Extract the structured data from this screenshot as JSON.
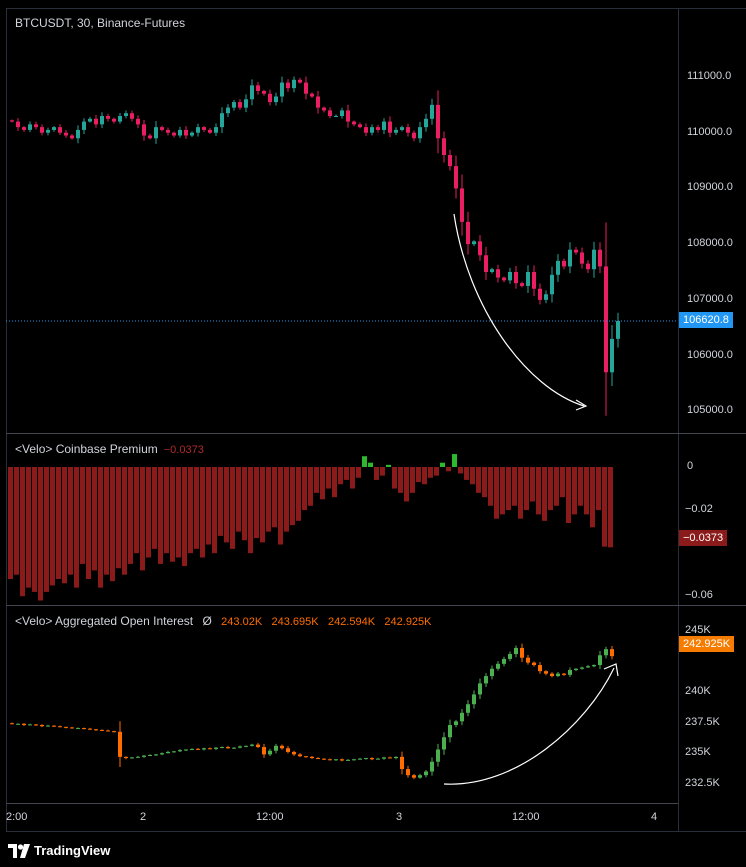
{
  "main_pane": {
    "title": "BTCUSDT, 30, Binance-Futures",
    "price_axis": [
      "111000.0",
      "110000.0",
      "109000.0",
      "108000.0",
      "107000.0",
      "106000.0",
      "105000.0"
    ],
    "last_price": "106620.8",
    "last_price_color": "#2196f3"
  },
  "premium_pane": {
    "title": "<Velo> Coinbase Premium",
    "value": "−0.0373",
    "value_color": "#8b1a1a",
    "axis": [
      "0",
      "−0.02",
      "−0.04",
      "−0.06"
    ],
    "tag": "−0.0373"
  },
  "oi_pane": {
    "title": "<Velo> Aggregated Open Interest",
    "symbol": "Ø",
    "values": [
      "243.02K",
      "243.695K",
      "242.594K",
      "242.925K"
    ],
    "axis": [
      "245K",
      "242.5K",
      "240K",
      "237.5K",
      "235K",
      "232.5K"
    ],
    "tag": "242.925K",
    "tag_color": "#f57c00"
  },
  "time_axis": [
    "2:00",
    "2",
    "12:00",
    "3",
    "12:00",
    "4"
  ],
  "brand": "TradingView",
  "colors": {
    "up": "#26a69a",
    "down": "#e91e63",
    "oi_up": "#4caf50",
    "oi_down": "#ff6d00"
  },
  "chart_data": [
    {
      "type": "candlestick",
      "title": "BTCUSDT, 30, Binance-Futures",
      "ylim": [
        104700,
        111700
      ],
      "close": [
        110200,
        110100,
        110050,
        110150,
        110100,
        110000,
        110050,
        110100,
        110000,
        109950,
        109900,
        110050,
        110200,
        110250,
        110150,
        110300,
        110250,
        110200,
        110300,
        110350,
        110250,
        110150,
        109950,
        109900,
        110100,
        110050,
        110000,
        109950,
        110050,
        109950,
        110000,
        110100,
        110050,
        110000,
        110100,
        110350,
        110450,
        110550,
        110450,
        110600,
        110850,
        110750,
        110700,
        110550,
        110650,
        110900,
        110800,
        110950,
        110900,
        110700,
        110650,
        110450,
        110400,
        110300,
        110300,
        110400,
        110200,
        110150,
        110100,
        110000,
        110100,
        110050,
        110200,
        110000,
        110050,
        110100,
        110000,
        109900,
        110100,
        110250,
        110500,
        109900,
        109600,
        109400,
        109000,
        108400,
        108000,
        108050,
        107800,
        107500,
        107550,
        107400,
        107350,
        107500,
        107300,
        107250,
        107500,
        107200,
        107000,
        107100,
        107450,
        107700,
        107600,
        107900,
        107850,
        107650,
        107550,
        107900,
        107600,
        105700,
        106300,
        106620
      ]
    },
    {
      "type": "bar",
      "title": "<Velo> Coinbase Premium",
      "ylim": [
        -0.065,
        0.005
      ],
      "values": [
        -0.052,
        -0.05,
        -0.06,
        -0.056,
        -0.058,
        -0.062,
        -0.058,
        -0.055,
        -0.052,
        -0.054,
        -0.05,
        -0.056,
        -0.045,
        -0.052,
        -0.048,
        -0.056,
        -0.05,
        -0.053,
        -0.047,
        -0.05,
        -0.045,
        -0.04,
        -0.048,
        -0.042,
        -0.038,
        -0.045,
        -0.04,
        -0.044,
        -0.042,
        -0.046,
        -0.04,
        -0.038,
        -0.042,
        -0.036,
        -0.04,
        -0.032,
        -0.035,
        -0.038,
        -0.03,
        -0.034,
        -0.04,
        -0.033,
        -0.035,
        -0.03,
        -0.028,
        -0.036,
        -0.03,
        -0.027,
        -0.025,
        -0.02,
        -0.018,
        -0.012,
        -0.015,
        -0.01,
        -0.014,
        -0.008,
        -0.006,
        -0.01,
        -0.005,
        0.005,
        0.002,
        -0.006,
        -0.004,
        0.001,
        -0.01,
        -0.012,
        -0.016,
        -0.012,
        -0.007,
        -0.008,
        -0.005,
        -0.004,
        0.002,
        -0.002,
        0.006,
        -0.003,
        -0.006,
        -0.008,
        -0.012,
        -0.014,
        -0.018,
        -0.024,
        -0.022,
        -0.02,
        -0.018,
        -0.024,
        -0.02,
        -0.016,
        -0.022,
        -0.025,
        -0.02,
        -0.018,
        -0.014,
        -0.026,
        -0.022,
        -0.018,
        -0.022,
        -0.028,
        -0.02,
        -0.037,
        -0.0373
      ]
    },
    {
      "type": "candlestick",
      "title": "<Velo> Aggregated Open Interest",
      "ylim": [
        231500,
        245800
      ],
      "close": [
        237400,
        237400,
        237300,
        237350,
        237300,
        237200,
        237250,
        237200,
        237150,
        237100,
        237050,
        237050,
        237000,
        236950,
        236900,
        236850,
        236800,
        236750,
        234700,
        234600,
        234650,
        234700,
        234800,
        234850,
        234900,
        235000,
        235100,
        235150,
        235250,
        235300,
        235350,
        235300,
        235400,
        235350,
        235450,
        235500,
        235400,
        235450,
        235550,
        235600,
        235700,
        235500,
        234900,
        235200,
        235600,
        235400,
        235100,
        234900,
        234750,
        234700,
        234600,
        234550,
        234500,
        234450,
        234500,
        234400,
        234450,
        234500,
        234550,
        234600,
        234500,
        234550,
        234650,
        234600,
        234700,
        233700,
        233200,
        233000,
        233200,
        233500,
        234300,
        235300,
        236300,
        237300,
        237600,
        238300,
        239000,
        239800,
        240700,
        241300,
        241900,
        242300,
        242700,
        243100,
        243600,
        242800,
        242400,
        242200,
        241700,
        241500,
        241300,
        241500,
        241400,
        241800,
        241900,
        242000,
        242100,
        242200,
        243000,
        243500,
        242925
      ]
    }
  ]
}
